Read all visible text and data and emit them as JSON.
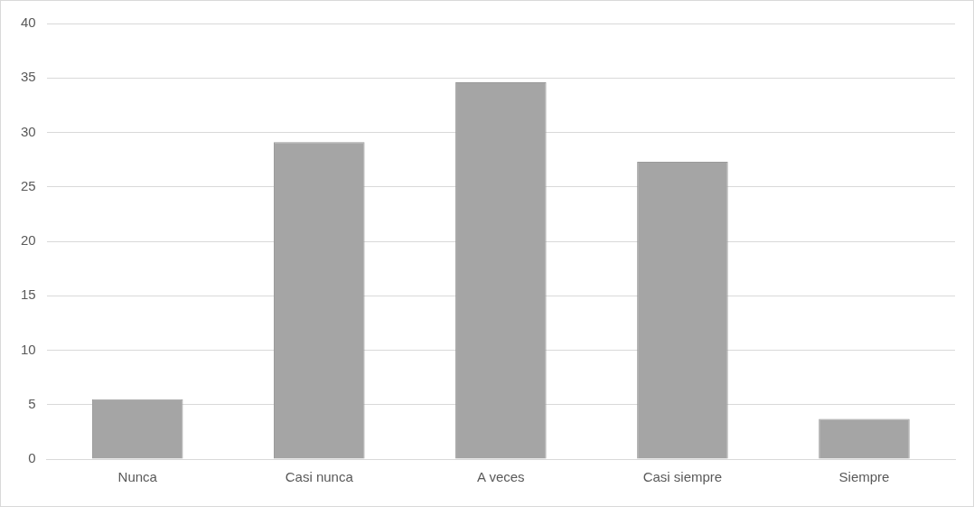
{
  "chart_data": {
    "type": "bar",
    "categories": [
      "Nunca",
      "Casi nunca",
      "A veces",
      "Casi siempre",
      "Siempre"
    ],
    "values": [
      5.5,
      29.1,
      34.6,
      27.3,
      3.7
    ],
    "color": "#a5a5a5",
    "ylim": [
      0,
      40
    ],
    "yticks": [
      0,
      5,
      10,
      15,
      20,
      25,
      30,
      35,
      40
    ],
    "grid": "y",
    "legend": false
  }
}
